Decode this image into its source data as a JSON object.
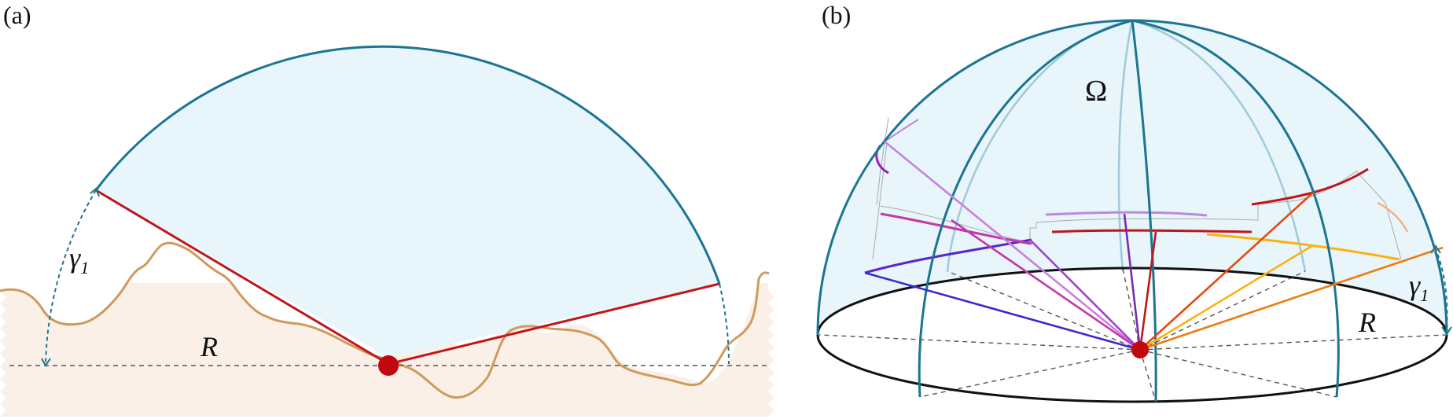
{
  "panel_a": {
    "label": "(a)",
    "gamma_symbol": "γ",
    "gamma_subscript": "1",
    "radius_label": "R"
  },
  "panel_b": {
    "label": "(b)",
    "omega_label": "Ω",
    "gamma_symbol": "γ",
    "gamma_subscript": "1",
    "radius_label": "R"
  },
  "colors": {
    "dome_stroke": "#1b7592",
    "dome_fill": "#e8f5fb",
    "terrain_stroke": "#cf9a5e",
    "terrain_fill": "#fbf0e8",
    "horizon_ray": "#c0161b",
    "observer": "#c0080e",
    "dashed_line": "#555555",
    "ray_colors": [
      "#c0161b",
      "#e8480c",
      "#f9b212",
      "#ee7a10",
      "#5a26c8",
      "#a040d0",
      "#c03aa8",
      "#7a2ab0"
    ]
  }
}
